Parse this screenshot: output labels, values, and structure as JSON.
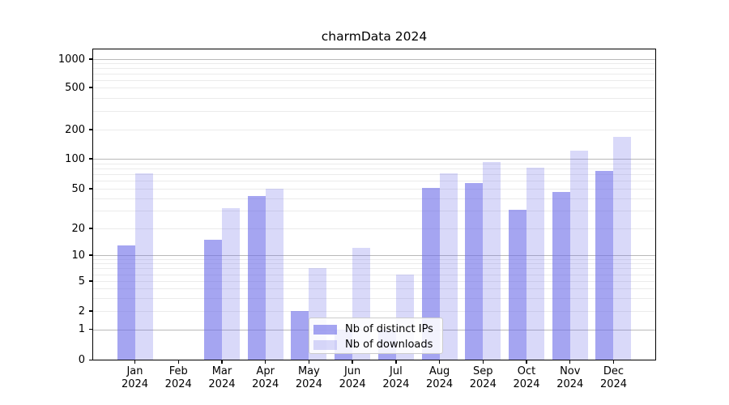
{
  "chart_data": {
    "type": "bar",
    "title": "charmData 2024",
    "categories": [
      "Jan 2024",
      "Feb 2024",
      "Mar 2024",
      "Apr 2024",
      "May 2024",
      "Jun 2024",
      "Jul 2024",
      "Aug 2024",
      "Sep 2024",
      "Oct 2024",
      "Nov 2024",
      "Dec 2024"
    ],
    "series": [
      {
        "name": "Nb of distinct IPs",
        "base_color": "#6e6ee8",
        "alpha": 0.62,
        "rendered_color": "#a5a5f1",
        "values": [
          13,
          0,
          15,
          42,
          2,
          1,
          1,
          51,
          57,
          31,
          46,
          75
        ]
      },
      {
        "name": "Nb of downloads",
        "base_color": "#6e6ee8",
        "alpha": 0.26,
        "rendered_color": "#dcdcf9",
        "values": [
          71,
          0,
          32,
          50,
          7,
          12,
          6,
          72,
          93,
          81,
          121,
          167
        ]
      }
    ],
    "yscale": "symlog",
    "ylim": [
      0,
      1300
    ],
    "y_ticks": [
      0,
      1,
      2,
      5,
      10,
      20,
      50,
      100,
      200,
      500,
      1000
    ],
    "y_minor_ticks": [
      3,
      4,
      6,
      7,
      8,
      9,
      30,
      40,
      60,
      70,
      80,
      90,
      300,
      400,
      600,
      700,
      800,
      900
    ],
    "grid": true,
    "legend": {
      "position": "lower center",
      "entries": [
        "Nb of distinct IPs",
        "Nb of downloads"
      ]
    }
  },
  "colors": {
    "background": "#ffffff",
    "grid_minor": "#ebebeb",
    "grid_major": "#b9b9b9",
    "axis": "#000000",
    "text": "#000000",
    "legend_border": "#cccccc"
  }
}
